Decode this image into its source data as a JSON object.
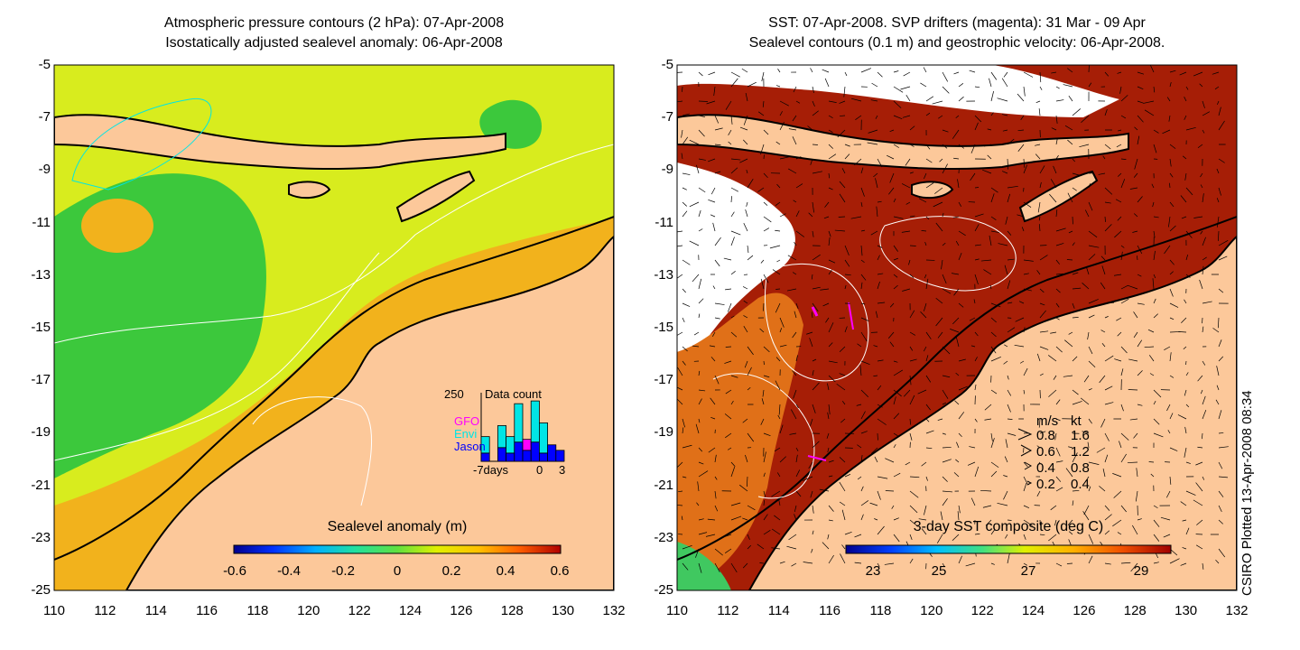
{
  "left": {
    "title_line1": "Atmospheric pressure contours (2 hPa): 07-Apr-2008",
    "title_line2": "Isostatically adjusted sealevel anomaly: 06-Apr-2008",
    "colorbar": {
      "label": "Sealevel anomaly (m)",
      "ticks": [
        "-0.6",
        "-0.4",
        "-0.2",
        "0",
        "0.2",
        "0.4",
        "0.6"
      ]
    },
    "inset": {
      "title": "Data count",
      "ymax_label": "250",
      "legend": [
        {
          "name": "GFO",
          "color": "#ff00ff"
        },
        {
          "name": "Envi",
          "color": "#00e5e5"
        },
        {
          "name": "Jason",
          "color": "#0000ff"
        }
      ],
      "x_labels": [
        "-7days",
        "0",
        "3"
      ],
      "chart_data": {
        "type": "bar",
        "title": "Data count",
        "ylim": [
          0,
          250
        ],
        "series": [
          {
            "name": "Jason",
            "values": [
              30,
              0,
              50,
              30,
              70,
              40,
              70,
              30,
              60,
              40
            ]
          },
          {
            "name": "Envi",
            "values": [
              60,
              0,
              80,
              60,
              140,
              0,
              150,
              110,
              0,
              0
            ]
          },
          {
            "name": "GFO",
            "values": [
              0,
              0,
              0,
              0,
              0,
              40,
              0,
              0,
              0,
              0
            ]
          }
        ]
      }
    }
  },
  "right": {
    "title_line1": "SST: 07-Apr-2008. SVP drifters (magenta): 31 Mar - 09 Apr",
    "title_line2": "Sealevel contours (0.1 m) and geostrophic velocity: 06-Apr-2008.",
    "colorbar": {
      "label": "3-day SST composite (deg C)",
      "ticks": [
        "23",
        "25",
        "27",
        "29"
      ]
    },
    "velocity_legend": {
      "header_ms": "m/s",
      "header_kt": "kt",
      "rows": [
        {
          "ms": "0.8",
          "kt": "1.6"
        },
        {
          "ms": "0.6",
          "kt": "1.2"
        },
        {
          "ms": "0.4",
          "kt": "0.8"
        },
        {
          "ms": "0.2",
          "kt": "0.4"
        }
      ]
    }
  },
  "axes": {
    "y_ticks": [
      "-5",
      "-7",
      "-9",
      "-11",
      "-13",
      "-15",
      "-17",
      "-19",
      "-21",
      "-23",
      "-25"
    ],
    "x_ticks": [
      "110",
      "112",
      "114",
      "116",
      "118",
      "120",
      "122",
      "124",
      "126",
      "128",
      "130",
      "132"
    ]
  },
  "side_label": "CSIRO Plotted 13-Apr-2008 08:34",
  "colors": {
    "land": "#fcc89a",
    "coast": "#000000",
    "sst_warm": "#a61e06",
    "sla_yellow": "#d8ec1e",
    "sla_green": "#3cc83c",
    "sla_orange": "#f2b21c"
  }
}
